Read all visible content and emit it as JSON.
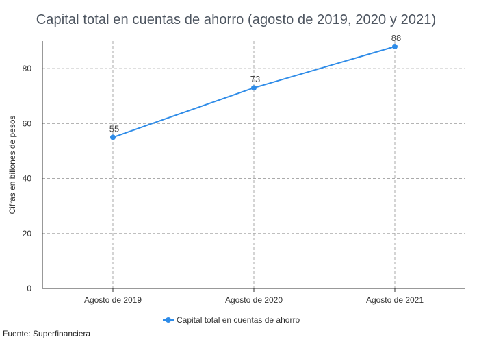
{
  "chart_data": {
    "type": "line",
    "title": "Capital total en cuentas de ahorro (agosto de 2019, 2020 y 2021)",
    "xlabel": "",
    "ylabel": "Cifras en billones de pesos",
    "categories": [
      "Agosto de 2019",
      "Agosto de 2020",
      "Agosto de 2021"
    ],
    "series": [
      {
        "name": "Capital total en cuentas de ahorro",
        "values": [
          55,
          73,
          88
        ],
        "color": "#2f8ce8"
      }
    ],
    "ylim": [
      0,
      90
    ],
    "yticks": [
      0,
      20,
      40,
      60,
      80
    ],
    "grid": true,
    "grid_style": "dashed",
    "legend_position": "bottom-center",
    "data_labels": true
  },
  "source": "Fuente: Superfinanciera"
}
